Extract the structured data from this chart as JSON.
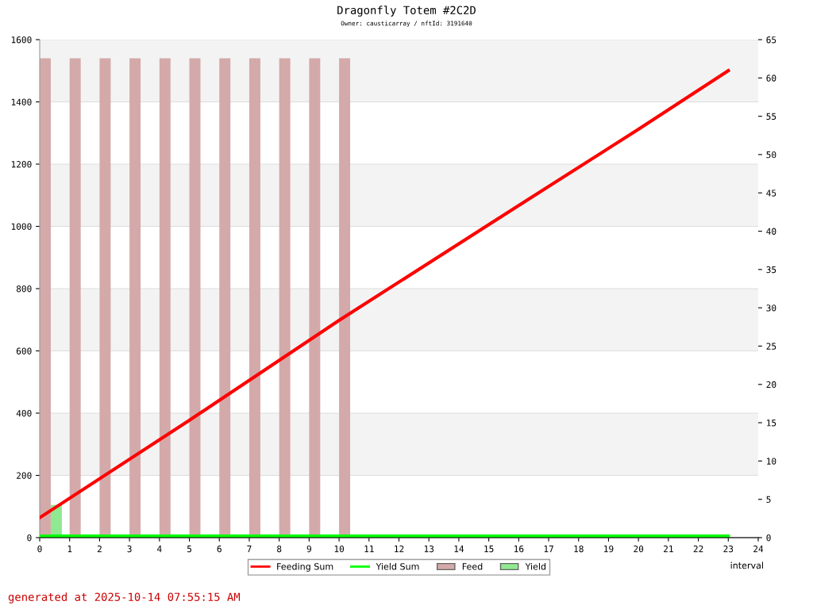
{
  "chart_data": {
    "type": "bar",
    "title": "Dragonfly Totem #2C2D",
    "subtitle": "Owner: causticarray / nftId: 3191640",
    "xlabel": "interval",
    "series": [
      {
        "name": "Feeding Sum",
        "type": "line",
        "color": "#ff0000",
        "x": [
          0,
          5,
          10,
          15,
          20,
          23
        ],
        "values": [
          64,
          377,
          698,
          1006,
          1312,
          1500
        ]
      },
      {
        "name": "Yield Sum",
        "type": "line",
        "color": "#00ff00",
        "x": [
          0,
          23
        ],
        "values": [
          5,
          5
        ]
      },
      {
        "name": "Feed",
        "color": "#d4a9a9",
        "x": [
          0,
          1,
          2,
          3,
          4,
          5,
          6,
          7,
          8,
          9,
          10
        ],
        "values": [
          1540,
          1540,
          1540,
          1540,
          1540,
          1540,
          1540,
          1540,
          1540,
          1540,
          1540
        ]
      },
      {
        "name": "Yield",
        "color": "#90e890",
        "x": [
          0
        ],
        "values": [
          105
        ]
      }
    ],
    "xlim": [
      0,
      24
    ],
    "xticks": [
      0,
      1,
      2,
      3,
      4,
      5,
      6,
      7,
      8,
      9,
      10,
      11,
      12,
      13,
      14,
      15,
      16,
      17,
      18,
      19,
      20,
      21,
      22,
      23,
      24
    ],
    "ylim": [
      0,
      1600
    ],
    "yticks": [
      0,
      200,
      400,
      600,
      800,
      1000,
      1200,
      1400,
      1600
    ],
    "y2lim": [
      0,
      65
    ],
    "y2ticks": [
      0,
      5,
      10,
      15,
      20,
      25,
      30,
      35,
      40,
      45,
      50,
      55,
      60,
      65
    ],
    "grid": "y",
    "legend": "bottom",
    "annotations": [
      "generated at 2025-10-14 07:55:15 AM"
    ]
  }
}
